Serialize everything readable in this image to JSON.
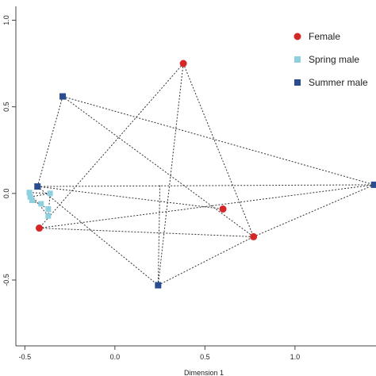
{
  "chart_data": {
    "type": "scatter",
    "xlabel": "Dimension 1",
    "ylabel": "",
    "xlim": [
      -0.55,
      1.45
    ],
    "ylim": [
      -0.88,
      1.08
    ],
    "x_ticks": [
      -0.5,
      0.0,
      0.5,
      1.0
    ],
    "y_ticks": [
      -0.5,
      0.0,
      0.5,
      1.0
    ],
    "x_tick_labels": [
      "-0.5",
      "0.0",
      "0.5",
      "1.0"
    ],
    "y_tick_labels": [
      "-0.5",
      "0.0",
      "0.5",
      "1.0"
    ],
    "grid": false,
    "legend_position": "top-right",
    "series": [
      {
        "name": "Female",
        "marker": "circle",
        "color": "#d62728",
        "points": [
          {
            "x": 0.38,
            "y": 0.75
          },
          {
            "x": 0.6,
            "y": -0.09
          },
          {
            "x": 0.77,
            "y": -0.25
          },
          {
            "x": -0.42,
            "y": -0.2
          }
        ]
      },
      {
        "name": "Spring male",
        "marker": "square",
        "color": "#8ecfe0",
        "points": [
          {
            "x": -0.475,
            "y": 0.005
          },
          {
            "x": -0.47,
            "y": -0.02
          },
          {
            "x": -0.46,
            "y": -0.04
          },
          {
            "x": -0.41,
            "y": -0.06
          },
          {
            "x": -0.37,
            "y": -0.09
          },
          {
            "x": -0.36,
            "y": 0.0
          },
          {
            "x": -0.37,
            "y": -0.13
          }
        ]
      },
      {
        "name": "Summer male",
        "marker": "square",
        "color": "#2a4d8f",
        "points": [
          {
            "x": -0.29,
            "y": 0.56
          },
          {
            "x": -0.43,
            "y": 0.04
          },
          {
            "x": 1.44,
            "y": 0.05
          },
          {
            "x": 0.24,
            "y": -0.53
          }
        ]
      }
    ],
    "hull_edges": [
      [
        [
          0.38,
          0.75
        ],
        [
          -0.42,
          -0.2
        ]
      ],
      [
        [
          0.38,
          0.75
        ],
        [
          0.24,
          -0.53
        ]
      ],
      [
        [
          0.38,
          0.75
        ],
        [
          0.77,
          -0.25
        ]
      ],
      [
        [
          -0.29,
          0.56
        ],
        [
          1.44,
          0.05
        ]
      ],
      [
        [
          -0.29,
          0.56
        ],
        [
          -0.43,
          0.04
        ]
      ],
      [
        [
          -0.29,
          0.56
        ],
        [
          0.77,
          -0.25
        ]
      ],
      [
        [
          -0.43,
          0.04
        ],
        [
          1.44,
          0.05
        ]
      ],
      [
        [
          -0.43,
          0.04
        ],
        [
          0.24,
          -0.53
        ]
      ],
      [
        [
          -0.43,
          0.04
        ],
        [
          0.6,
          -0.09
        ]
      ],
      [
        [
          1.44,
          0.05
        ],
        [
          0.77,
          -0.25
        ]
      ],
      [
        [
          1.44,
          0.05
        ],
        [
          -0.42,
          -0.2
        ]
      ],
      [
        [
          0.24,
          -0.53
        ],
        [
          0.77,
          -0.25
        ]
      ],
      [
        [
          0.24,
          -0.53
        ],
        [
          0.25,
          0.05
        ]
      ],
      [
        [
          -0.42,
          -0.2
        ],
        [
          0.77,
          -0.25
        ]
      ],
      [
        [
          -0.475,
          0.005
        ],
        [
          -0.36,
          0.0
        ]
      ],
      [
        [
          -0.475,
          0.005
        ],
        [
          -0.37,
          -0.13
        ]
      ],
      [
        [
          -0.36,
          0.0
        ],
        [
          -0.37,
          -0.13
        ]
      ],
      [
        [
          -0.46,
          -0.04
        ],
        [
          -0.37,
          -0.09
        ]
      ],
      [
        [
          -0.47,
          -0.02
        ],
        [
          -0.36,
          0.0
        ]
      ]
    ]
  }
}
